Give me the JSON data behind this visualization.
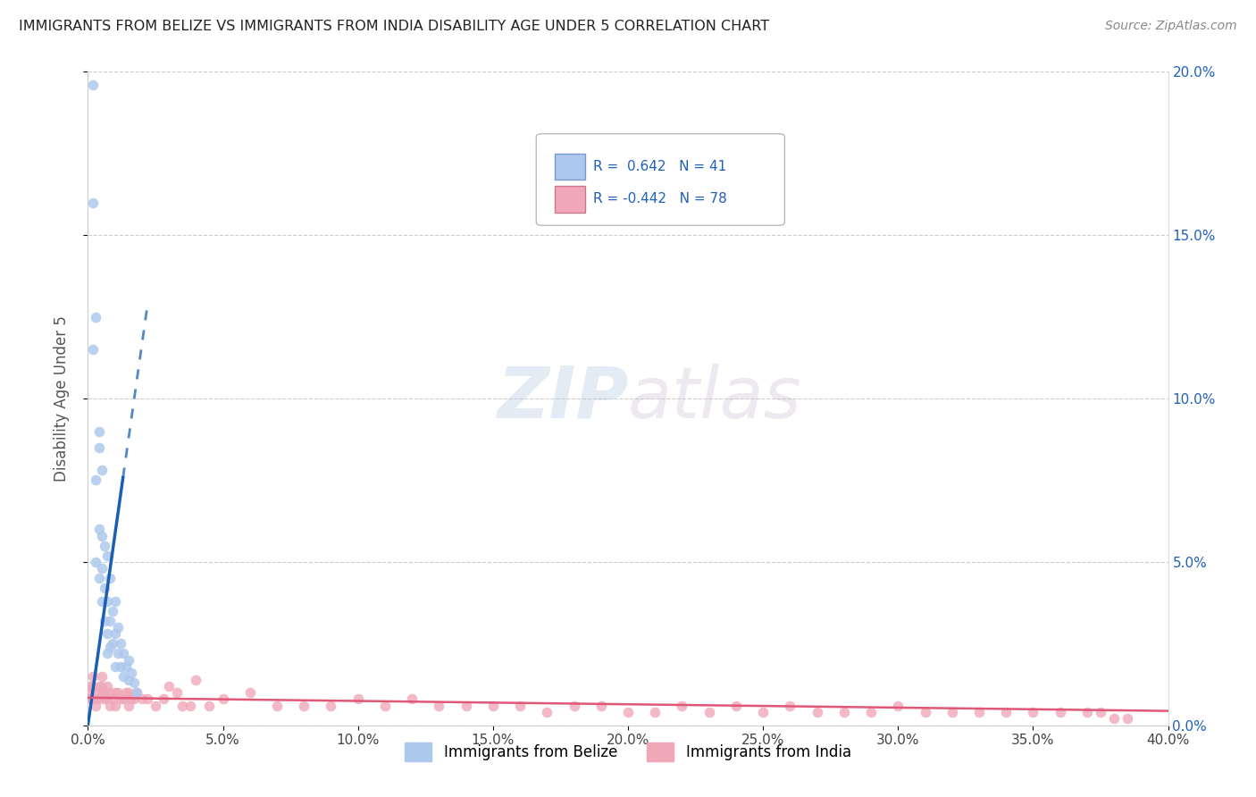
{
  "title": "IMMIGRANTS FROM BELIZE VS IMMIGRANTS FROM INDIA DISABILITY AGE UNDER 5 CORRELATION CHART",
  "source": "Source: ZipAtlas.com",
  "ylabel": "Disability Age Under 5",
  "legend_belize": "Immigrants from Belize",
  "legend_india": "Immigrants from India",
  "R_belize": 0.642,
  "N_belize": 41,
  "R_india": -0.442,
  "N_india": 78,
  "xlim": [
    0.0,
    0.4
  ],
  "ylim": [
    0.0,
    0.2
  ],
  "xticks": [
    0.0,
    0.05,
    0.1,
    0.15,
    0.2,
    0.25,
    0.3,
    0.35,
    0.4
  ],
  "yticks": [
    0.0,
    0.05,
    0.1,
    0.15,
    0.2
  ],
  "xtick_labels": [
    "0.0%",
    "",
    "",
    "",
    "",
    "",
    "",
    "",
    "40.0%"
  ],
  "ytick_labels_right": [
    "0.0%",
    "5.0%",
    "10.0%",
    "15.0%",
    "20.0%"
  ],
  "color_belize": "#adc8ed",
  "color_india": "#f0a8b8",
  "trendline_belize": "#1a5fb4",
  "trendline_india": "#e05878",
  "background": "#ffffff",
  "watermark_zip": "ZIP",
  "watermark_atlas": "atlas",
  "belize_x": [
    0.002,
    0.002,
    0.002,
    0.003,
    0.003,
    0.003,
    0.004,
    0.004,
    0.004,
    0.004,
    0.005,
    0.005,
    0.005,
    0.005,
    0.006,
    0.006,
    0.006,
    0.007,
    0.007,
    0.007,
    0.007,
    0.008,
    0.008,
    0.008,
    0.009,
    0.009,
    0.01,
    0.01,
    0.01,
    0.011,
    0.011,
    0.012,
    0.012,
    0.013,
    0.013,
    0.014,
    0.015,
    0.015,
    0.016,
    0.017,
    0.018
  ],
  "belize_y": [
    0.196,
    0.16,
    0.115,
    0.125,
    0.075,
    0.05,
    0.09,
    0.085,
    0.06,
    0.045,
    0.078,
    0.058,
    0.048,
    0.038,
    0.055,
    0.042,
    0.032,
    0.052,
    0.038,
    0.028,
    0.022,
    0.045,
    0.032,
    0.024,
    0.035,
    0.025,
    0.038,
    0.028,
    0.018,
    0.03,
    0.022,
    0.025,
    0.018,
    0.022,
    0.015,
    0.018,
    0.02,
    0.014,
    0.016,
    0.013,
    0.01
  ],
  "india_x": [
    0.001,
    0.001,
    0.001,
    0.002,
    0.002,
    0.002,
    0.003,
    0.003,
    0.003,
    0.004,
    0.004,
    0.005,
    0.005,
    0.005,
    0.006,
    0.006,
    0.007,
    0.007,
    0.008,
    0.008,
    0.009,
    0.01,
    0.01,
    0.011,
    0.012,
    0.013,
    0.014,
    0.015,
    0.015,
    0.016,
    0.017,
    0.018,
    0.02,
    0.022,
    0.025,
    0.028,
    0.03,
    0.033,
    0.035,
    0.038,
    0.04,
    0.045,
    0.05,
    0.06,
    0.07,
    0.08,
    0.09,
    0.1,
    0.11,
    0.12,
    0.13,
    0.14,
    0.15,
    0.16,
    0.17,
    0.18,
    0.19,
    0.2,
    0.21,
    0.22,
    0.23,
    0.24,
    0.25,
    0.26,
    0.27,
    0.28,
    0.29,
    0.3,
    0.31,
    0.32,
    0.33,
    0.34,
    0.35,
    0.36,
    0.37,
    0.375,
    0.38,
    0.385
  ],
  "india_y": [
    0.012,
    0.01,
    0.008,
    0.015,
    0.012,
    0.008,
    0.01,
    0.008,
    0.006,
    0.012,
    0.008,
    0.015,
    0.012,
    0.01,
    0.01,
    0.008,
    0.012,
    0.008,
    0.01,
    0.006,
    0.008,
    0.01,
    0.006,
    0.01,
    0.008,
    0.008,
    0.01,
    0.01,
    0.006,
    0.008,
    0.008,
    0.01,
    0.008,
    0.008,
    0.006,
    0.008,
    0.012,
    0.01,
    0.006,
    0.006,
    0.014,
    0.006,
    0.008,
    0.01,
    0.006,
    0.006,
    0.006,
    0.008,
    0.006,
    0.008,
    0.006,
    0.006,
    0.006,
    0.006,
    0.004,
    0.006,
    0.006,
    0.004,
    0.004,
    0.006,
    0.004,
    0.006,
    0.004,
    0.006,
    0.004,
    0.004,
    0.004,
    0.006,
    0.004,
    0.004,
    0.004,
    0.004,
    0.004,
    0.004,
    0.004,
    0.004,
    0.002,
    0.002
  ]
}
